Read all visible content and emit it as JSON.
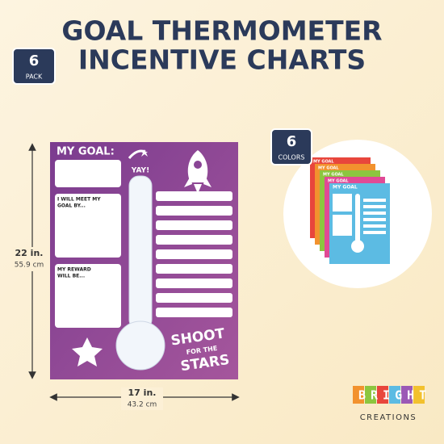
{
  "header": {
    "title_line_1": "GOAL THERMOMETER",
    "title_line_2": "INCENTIVE CHARTS"
  },
  "pack_badge": {
    "number": "6",
    "label": "PACK"
  },
  "colors_badge": {
    "number": "6",
    "label": "COLORS"
  },
  "poster": {
    "my_goal": "MY GOAL:",
    "yay": "YAY!",
    "meet_goal_line_1": "I WILL MEET MY",
    "meet_goal_line_2": "GOAL BY...",
    "reward_line_1": "MY REWARD",
    "reward_line_2": "WILL BE...",
    "slogan_line_1": "SHOOT",
    "slogan_line_2": "FOR THE",
    "slogan_line_3": "STARS"
  },
  "thumbnail": {
    "label": "MY GOAL"
  },
  "dimensions": {
    "height_in": "22 in.",
    "height_cm": "55.9 cm",
    "width_in": "17 in.",
    "width_cm": "43.2 cm"
  },
  "brand": {
    "name": "BRIGHT",
    "subtitle": "CREATIONS"
  }
}
